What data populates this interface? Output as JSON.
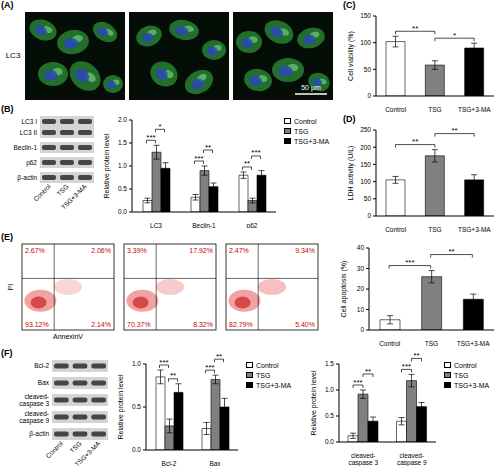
{
  "panel_A": {
    "panel_label": "(A)",
    "row_label": "LC3",
    "scale_bar": "50 μm"
  },
  "panel_B_blot": {
    "panel_label": "(B)",
    "bands": [
      "LC3 I",
      "LC3 II",
      "Beclin-1",
      "p62",
      "β-actin"
    ],
    "lanes": [
      "Control",
      "TSG",
      "TSG+3-MA"
    ]
  },
  "panel_E_flow": {
    "panel_label": "(E)",
    "x_label": "AnnexinV",
    "y_label": "PI",
    "plots": [
      {
        "upper_left": "2.67%",
        "upper_right": "2.06%",
        "lower_left": "93.12%",
        "lower_right": "2.14%"
      },
      {
        "upper_left": "3.39%",
        "upper_right": "17.92%",
        "lower_left": "70.37%",
        "lower_right": "8.32%"
      },
      {
        "upper_left": "2.47%",
        "upper_right": "9.34%",
        "lower_left": "82.79%",
        "lower_right": "5.40%"
      }
    ]
  },
  "panel_F_blot": {
    "panel_label": "(F)",
    "bands": [
      "Bcl-2",
      "Bax",
      "cleaved-caspase 3",
      "cleaved-caspase 9",
      "β-actin"
    ],
    "lanes": [
      "Control",
      "TSG",
      "TSG+3-MA"
    ]
  },
  "chart_data": [
    {
      "type": "bar",
      "y_label": "Relative protein level",
      "categories": [
        "LC3",
        "Beclin-1",
        "p62"
      ],
      "series": [
        {
          "name": "Control",
          "color": "#ffffff",
          "values": [
            0.25,
            0.32,
            0.8
          ],
          "errors": [
            0.05,
            0.06,
            0.07
          ]
        },
        {
          "name": "TSG",
          "color": "#808080",
          "values": [
            1.3,
            0.9,
            0.25
          ],
          "errors": [
            0.15,
            0.1,
            0.05
          ]
        },
        {
          "name": "TSG+3-MA",
          "color": "#000000",
          "values": [
            0.95,
            0.55,
            0.8
          ],
          "errors": [
            0.12,
            0.08,
            0.1
          ]
        }
      ],
      "ylim": [
        0,
        2
      ],
      "yticks": [
        {
          "value": 0,
          "label": "0.0"
        },
        0.5,
        {
          "value": 1,
          "label": "1.0"
        },
        1.5,
        {
          "value": 2,
          "label": "2.0"
        }
      ],
      "legend": "top-right",
      "annotations": [
        {
          "category": "LC3",
          "between": [
            "Control",
            "TSG"
          ],
          "text": "***"
        },
        {
          "category": "LC3",
          "between": [
            "TSG",
            "TSG+3-MA"
          ],
          "text": "*"
        },
        {
          "category": "Beclin-1",
          "between": [
            "Control",
            "TSG"
          ],
          "text": "***"
        },
        {
          "category": "Beclin-1",
          "between": [
            "TSG",
            "TSG+3-MA"
          ],
          "text": "**"
        },
        {
          "category": "p62",
          "between": [
            "Control",
            "TSG"
          ],
          "text": "**"
        },
        {
          "category": "p62",
          "between": [
            "TSG",
            "TSG+3-MA"
          ],
          "text": "***"
        }
      ]
    },
    {
      "type": "bar",
      "panel_label": "(C)",
      "y_label": "Cell viability (%)",
      "categories": [
        "Control",
        "TSG",
        "TSG+3-MA"
      ],
      "values": [
        102,
        58,
        90
      ],
      "errors": [
        10,
        8,
        9
      ],
      "colors": [
        "#ffffff",
        "#808080",
        "#000000"
      ],
      "ylim": [
        0,
        150
      ],
      "yticks": [
        0,
        50,
        100,
        150
      ],
      "annotations": [
        {
          "between": [
            "Control",
            "TSG"
          ],
          "text": "**"
        },
        {
          "between": [
            "TSG",
            "TSG+3-MA"
          ],
          "text": "*"
        }
      ]
    },
    {
      "type": "bar",
      "panel_label": "(D)",
      "y_label": "LDH activity (U/L)",
      "categories": [
        "Control",
        "TSG",
        "TSG+3-MA"
      ],
      "values": [
        105,
        175,
        105
      ],
      "errors": [
        10,
        18,
        15
      ],
      "colors": [
        "#ffffff",
        "#808080",
        "#000000"
      ],
      "ylim": [
        0,
        250
      ],
      "yticks": [
        0,
        50,
        100,
        150,
        200,
        250
      ],
      "annotations": [
        {
          "between": [
            "Control",
            "TSG"
          ],
          "text": "**"
        },
        {
          "between": [
            "TSG",
            "TSG+3-MA"
          ],
          "text": "**"
        }
      ]
    },
    {
      "type": "bar",
      "y_label": "Cell apoptosis (%)",
      "categories": [
        "Control",
        "TSG",
        "TSG+3-MA"
      ],
      "values": [
        5,
        26,
        15
      ],
      "errors": [
        2,
        3,
        2.5
      ],
      "colors": [
        "#ffffff",
        "#808080",
        "#000000"
      ],
      "ylim": [
        0,
        40
      ],
      "yticks": [
        0,
        10,
        20,
        30,
        40
      ],
      "annotations": [
        {
          "between": [
            "Control",
            "TSG"
          ],
          "text": "***"
        },
        {
          "between": [
            "TSG",
            "TSG+3-MA"
          ],
          "text": "**"
        }
      ]
    },
    {
      "type": "bar",
      "y_label": "Relative protein level",
      "categories": [
        "Bcl-2",
        "Bax"
      ],
      "series": [
        {
          "name": "Control",
          "color": "#ffffff",
          "values": [
            0.85,
            0.25
          ],
          "errors": [
            0.08,
            0.07
          ]
        },
        {
          "name": "TSG",
          "color": "#808080",
          "values": [
            0.28,
            0.82
          ],
          "errors": [
            0.08,
            0.05
          ]
        },
        {
          "name": "TSG+3-MA",
          "color": "#000000",
          "values": [
            0.67,
            0.5
          ],
          "errors": [
            0.1,
            0.1
          ]
        }
      ],
      "ylim": [
        0,
        1
      ],
      "yticks": [
        {
          "value": 0,
          "label": "0.0"
        },
        0.5,
        {
          "value": 1,
          "label": "1.0"
        }
      ],
      "legend": "top-right",
      "annotations": [
        {
          "category": "Bcl-2",
          "between": [
            "Control",
            "TSG"
          ],
          "text": "***"
        },
        {
          "category": "Bcl-2",
          "between": [
            "TSG",
            "TSG+3-MA"
          ],
          "text": "**"
        },
        {
          "category": "Bax",
          "between": [
            "Control",
            "TSG"
          ],
          "text": "***"
        },
        {
          "category": "Bax",
          "between": [
            "TSG",
            "TSG+3-MA"
          ],
          "text": "**"
        }
      ]
    },
    {
      "type": "bar",
      "y_label": "Relative protein level",
      "categories": [
        "cleaved-caspase 3",
        "cleaved-caspase 9"
      ],
      "series": [
        {
          "name": "Control",
          "color": "#ffffff",
          "values": [
            0.12,
            0.4
          ],
          "errors": [
            0.05,
            0.07
          ]
        },
        {
          "name": "TSG",
          "color": "#808080",
          "values": [
            0.92,
            1.18
          ],
          "errors": [
            0.08,
            0.12
          ]
        },
        {
          "name": "TSG+3-MA",
          "color": "#000000",
          "values": [
            0.4,
            0.68
          ],
          "errors": [
            0.08,
            0.08
          ]
        }
      ],
      "ylim": [
        0,
        1.5
      ],
      "yticks": [
        {
          "value": 0,
          "label": "0.0"
        },
        0.5,
        {
          "value": 1,
          "label": "1.0"
        },
        1.5
      ],
      "legend": "top-right",
      "annotations": [
        {
          "category": "cleaved-caspase 3",
          "between": [
            "Control",
            "TSG"
          ],
          "text": "***"
        },
        {
          "category": "cleaved-caspase 3",
          "between": [
            "TSG",
            "TSG+3-MA"
          ],
          "text": "**"
        },
        {
          "category": "cleaved-caspase 9",
          "between": [
            "Control",
            "TSG"
          ],
          "text": "***"
        },
        {
          "category": "cleaved-caspase 9",
          "between": [
            "TSG",
            "TSG+3-MA"
          ],
          "text": "**"
        }
      ]
    }
  ]
}
